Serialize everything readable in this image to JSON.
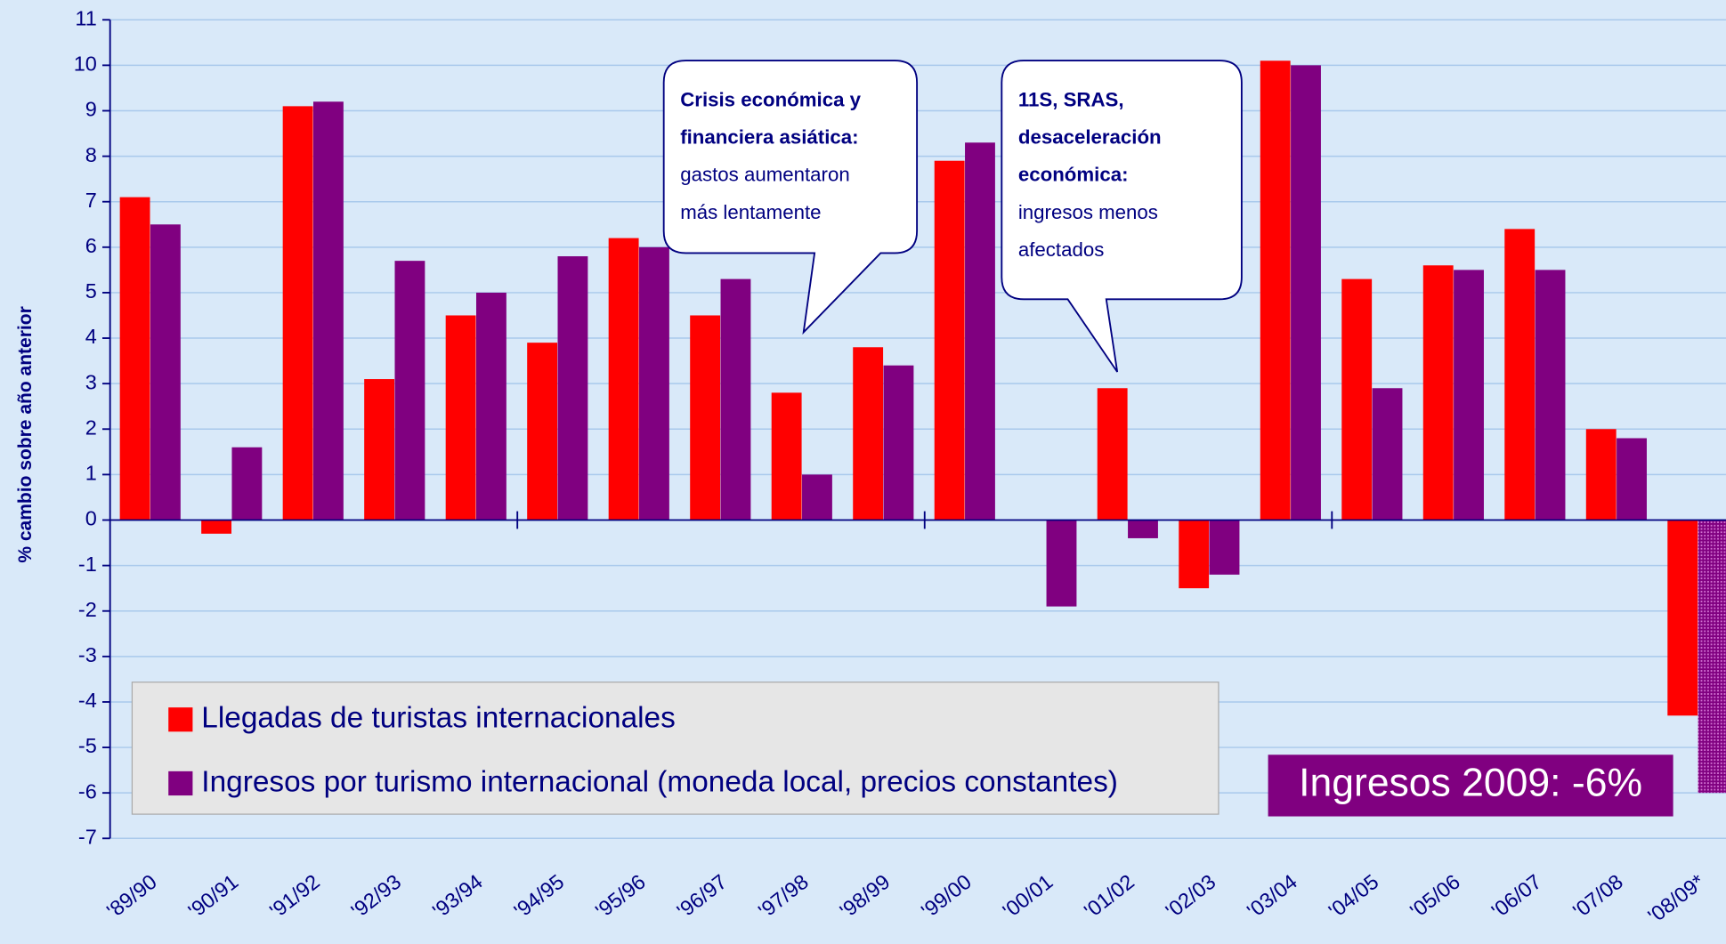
{
  "chart_data": {
    "type": "bar",
    "y_label": "% cambio sobre año anterior",
    "categories": [
      "'89/90",
      "'90/91",
      "'91/92",
      "'92/93",
      "'93/94",
      "'94/95",
      "'95/96",
      "'96/97",
      "'97/98",
      "'98/99",
      "'99/00",
      "'00/01",
      "'01/02",
      "'02/03",
      "'03/04",
      "'04/05",
      "'05/06",
      "'06/07",
      "'07/08",
      "'08/09*"
    ],
    "series": [
      {
        "name": "Llegadas de turistas internacionales",
        "color": "#ff0000",
        "values": [
          7.1,
          -0.3,
          9.1,
          3.1,
          4.5,
          3.9,
          6.2,
          4.5,
          2.8,
          3.8,
          7.9,
          0,
          2.9,
          -1.5,
          10.1,
          5.3,
          5.6,
          6.4,
          2.0,
          -4.3
        ]
      },
      {
        "name": "Ingresos por turismo internacional (moneda local, precios constantes)",
        "color": "#800080",
        "values": [
          6.5,
          1.6,
          9.2,
          5.7,
          5.0,
          5.8,
          6.0,
          5.3,
          1.0,
          3.4,
          8.3,
          -1.9,
          -0.4,
          -1.2,
          10.0,
          2.9,
          5.5,
          5.5,
          1.8,
          -6.0
        ]
      }
    ],
    "ylim": [
      -7,
      11
    ],
    "yticks": [
      -7,
      -6,
      -5,
      -4,
      -3,
      -2,
      -1,
      0,
      1,
      2,
      3,
      4,
      5,
      6,
      7,
      8,
      9,
      10,
      11
    ],
    "grid": true,
    "annotations": [
      {
        "bold": [
          "Crisis económica y",
          "financiera asiática:"
        ],
        "text": [
          "gastos aumentaron",
          "más lentamente"
        ]
      },
      {
        "bold": [
          "11S, SRAS,",
          "desaceleración",
          "económica:"
        ],
        "text": [
          "ingresos menos",
          "afectados"
        ]
      }
    ],
    "highlight": "Ingresos 2009: -6%"
  }
}
